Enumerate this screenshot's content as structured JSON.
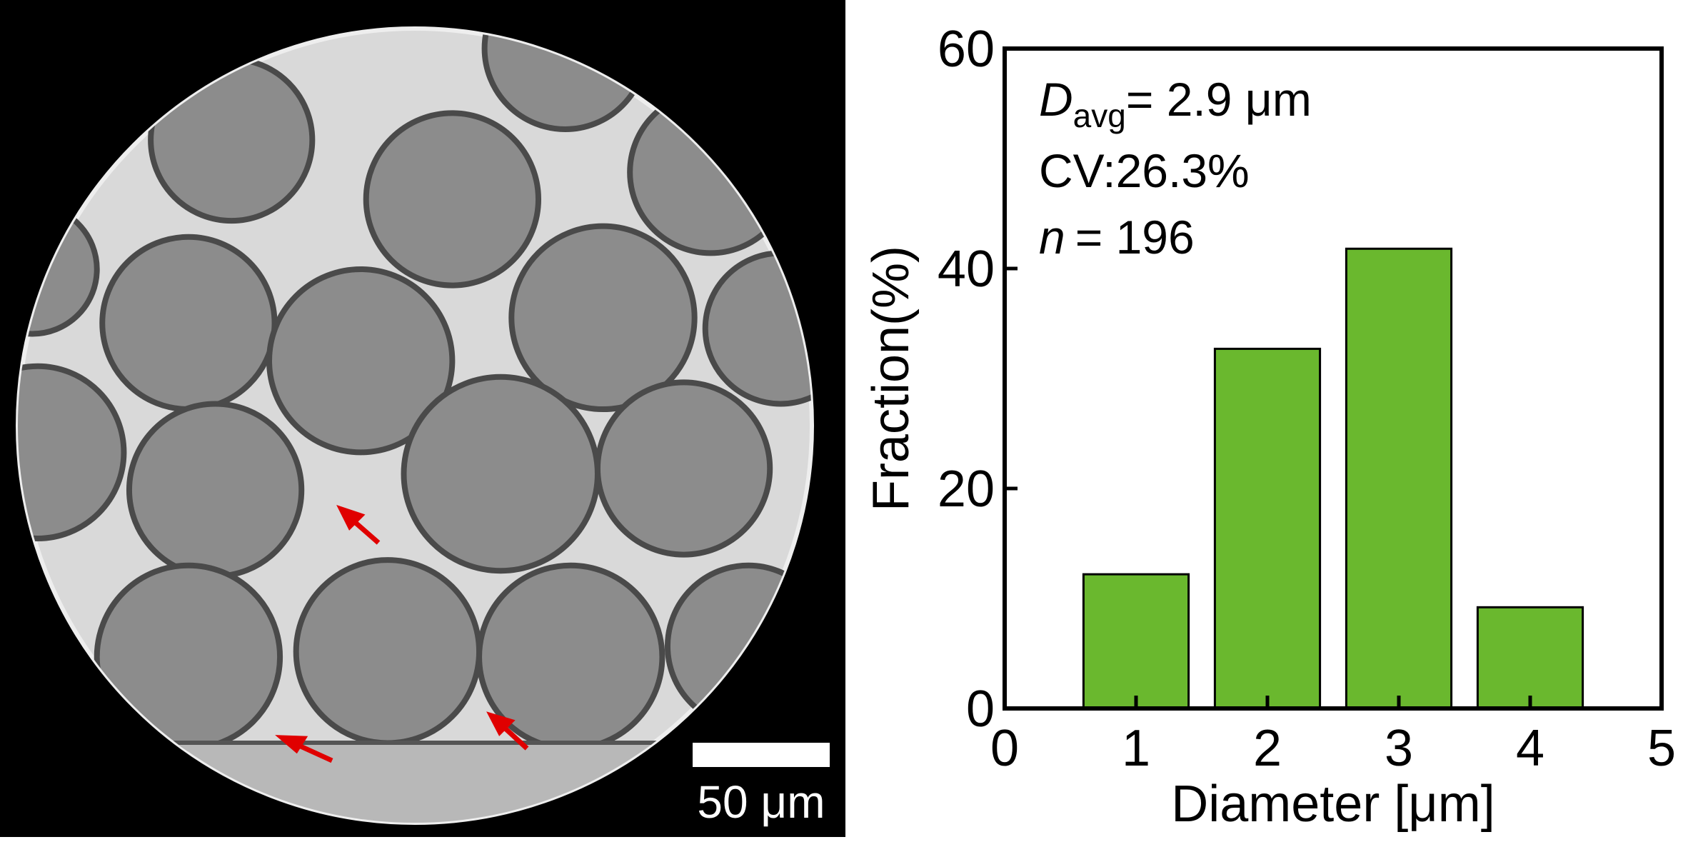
{
  "scale_bar": {
    "label": "50 μm"
  },
  "chart_data": {
    "type": "bar",
    "x": [
      1,
      2,
      3,
      4
    ],
    "values": [
      12.2,
      32.7,
      41.8,
      9.2
    ],
    "color": "#6ab82e",
    "xlim": [
      0,
      5
    ],
    "xticks": [
      0,
      1,
      2,
      3,
      4,
      5
    ],
    "ylim": [
      0,
      60
    ],
    "yticks": [
      0,
      20,
      40,
      60
    ],
    "xlabel": "Diameter [μm]",
    "ylabel": "Fraction(%)",
    "annotations": [
      [
        "D",
        "avg",
        "= 2.9 μm"
      ],
      [
        "CV:26.3%"
      ],
      [
        "n",
        "= 196"
      ]
    ]
  }
}
